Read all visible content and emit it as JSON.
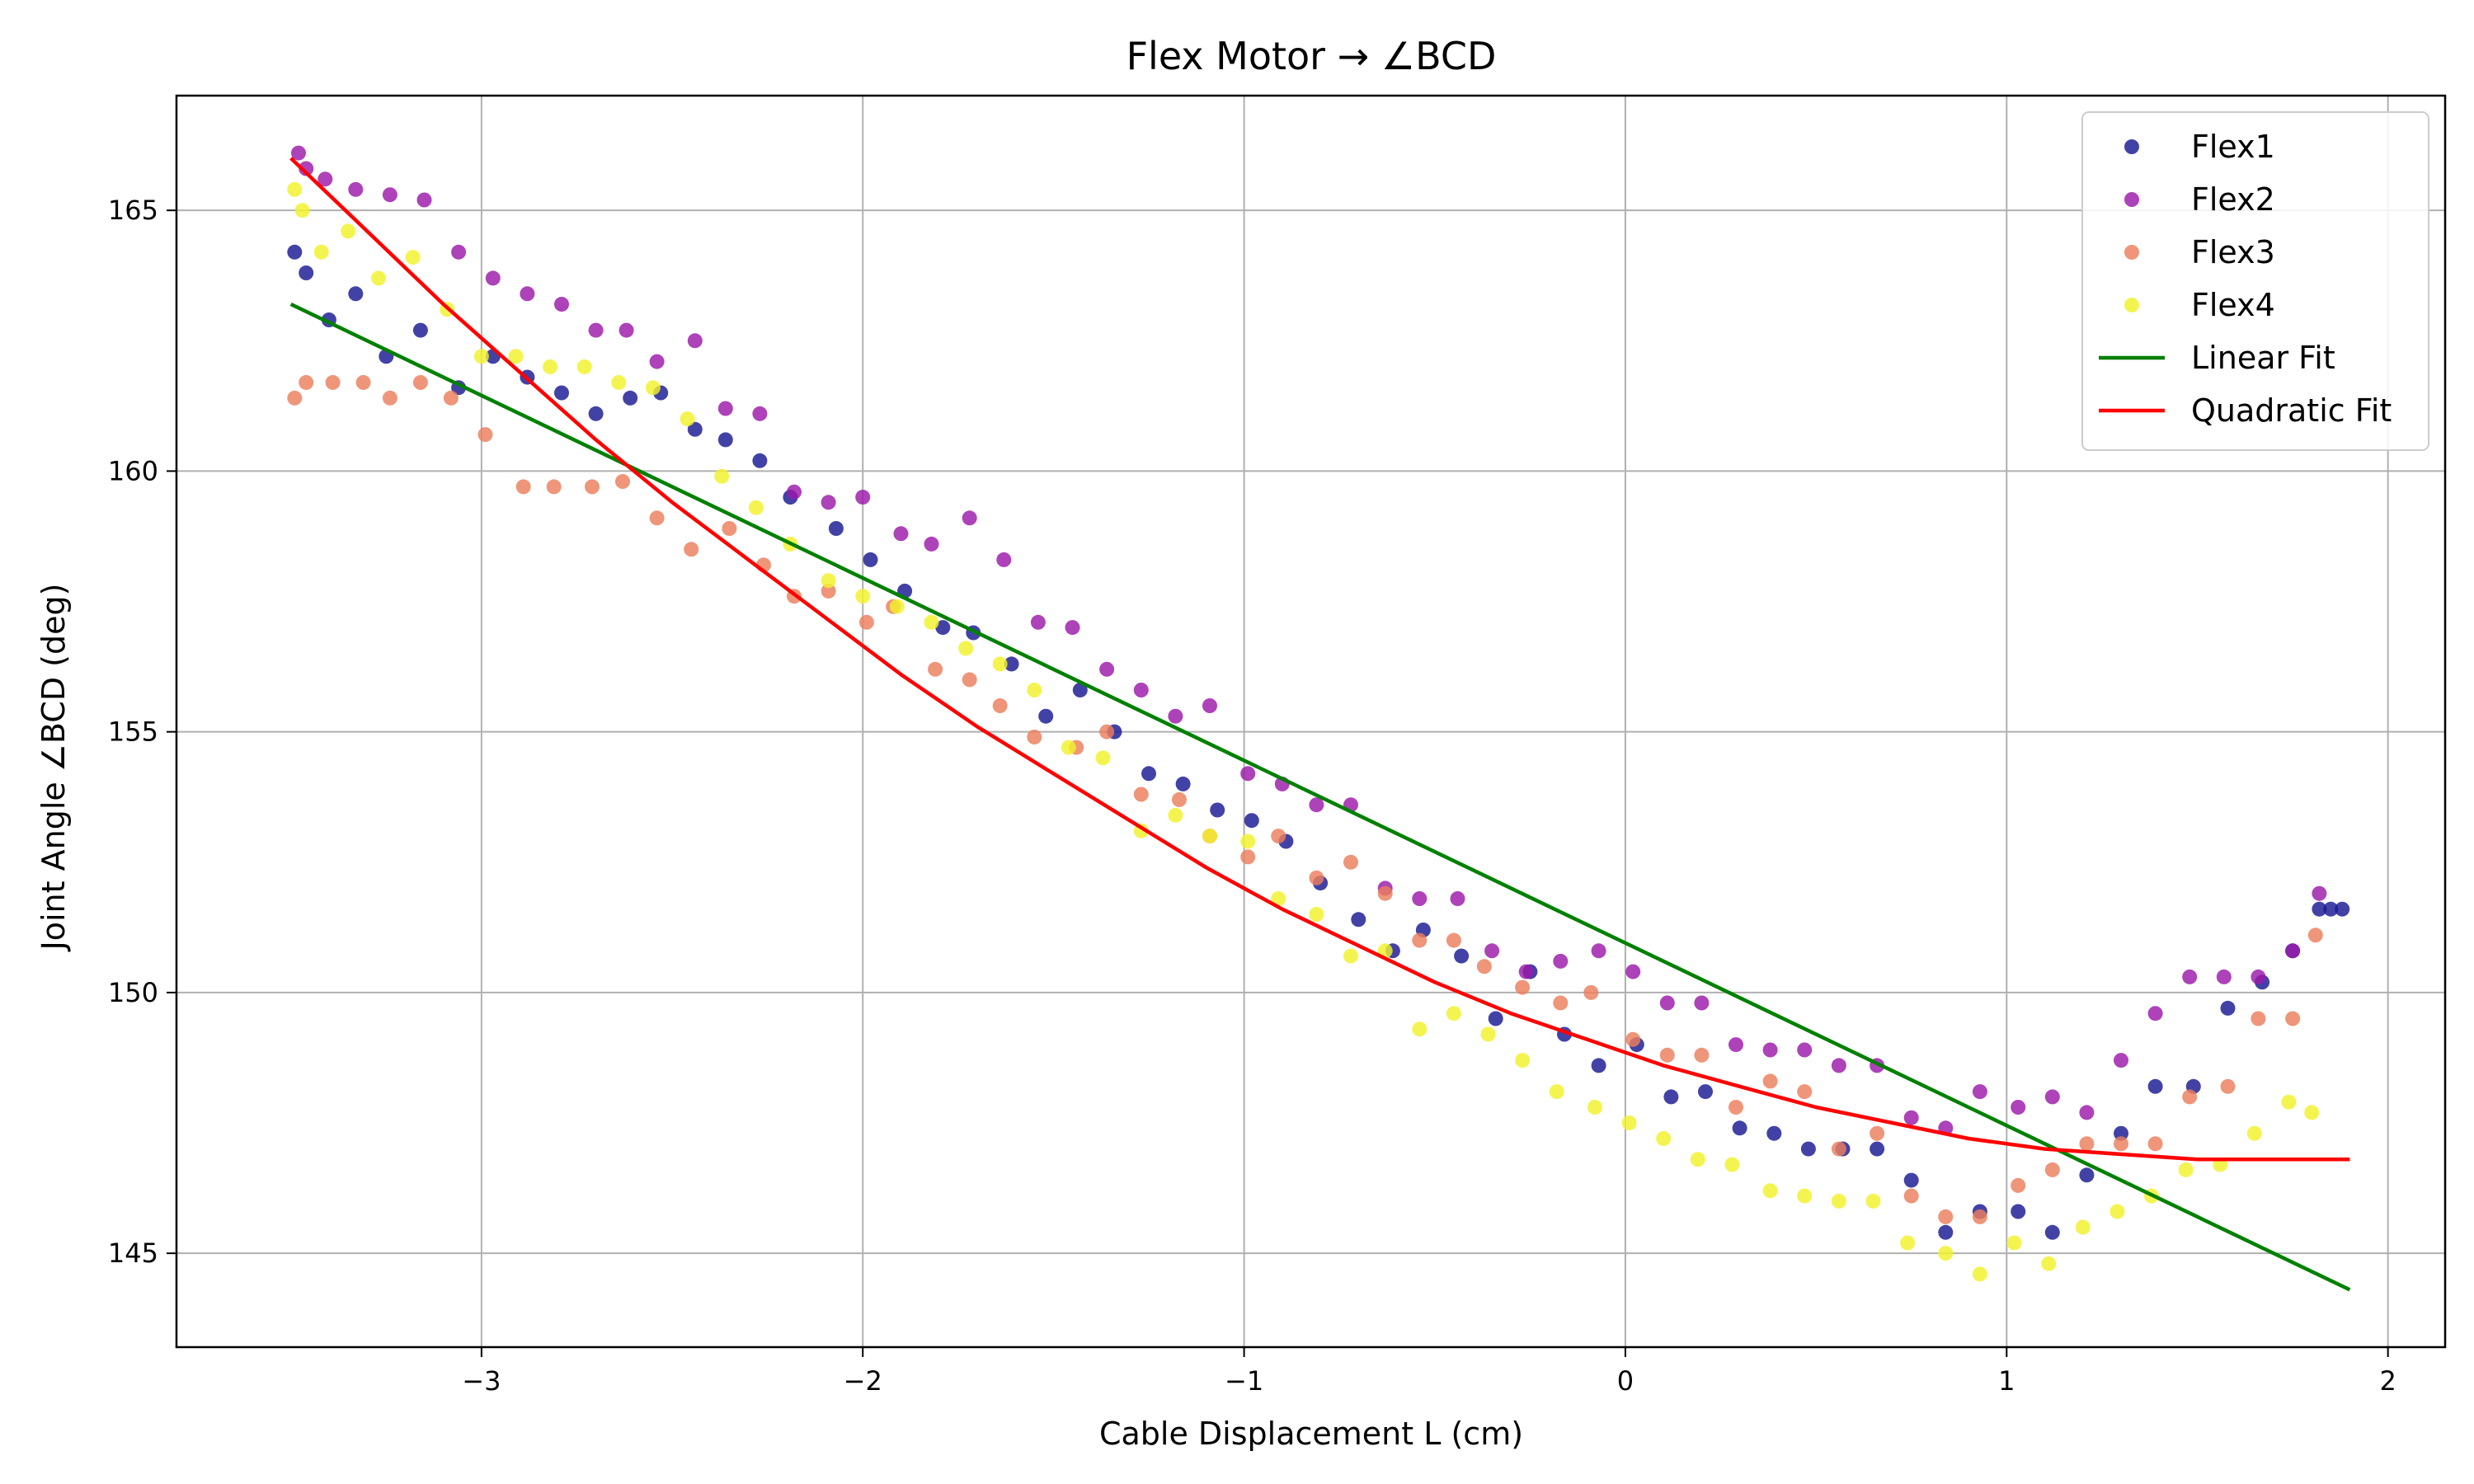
{
  "chart_data": {
    "type": "scatter",
    "title": "Flex Motor → ∠BCD",
    "xlabel": "Cable Displacement L (cm)",
    "ylabel": "Joint Angle ∠BCD (deg)",
    "xlim": [
      -3.8,
      2.15
    ],
    "ylim": [
      143.2,
      167.2
    ],
    "xticks": [
      -3,
      -2,
      -1,
      0,
      1,
      2
    ],
    "xtick_labels": [
      "−3",
      "−2",
      "−1",
      "0",
      "1",
      "2"
    ],
    "yticks": [
      145,
      150,
      155,
      160,
      165
    ],
    "ytick_labels": [
      "145",
      "150",
      "155",
      "160",
      "165"
    ],
    "grid": true,
    "legend_position": "top-right",
    "series": [
      {
        "name": "Flex1",
        "kind": "scatter",
        "color": "#191993",
        "x": [
          -3.49,
          -3.46,
          -3.4,
          -3.33,
          -3.25,
          -3.16,
          -3.06,
          -2.97,
          -2.88,
          -2.79,
          -2.7,
          -2.61,
          -2.53,
          -2.44,
          -2.36,
          -2.27,
          -2.19,
          -2.07,
          -1.98,
          -1.89,
          -1.79,
          -1.71,
          -1.61,
          -1.52,
          -1.43,
          -1.34,
          -1.25,
          -1.16,
          -1.07,
          -0.98,
          -0.89,
          -0.8,
          -0.7,
          -0.61,
          -0.53,
          -0.43,
          -0.34,
          -0.25,
          -0.16,
          -0.07,
          0.03,
          0.12,
          0.21,
          0.3,
          0.39,
          0.48,
          0.57,
          0.66,
          0.75,
          0.84,
          0.93,
          1.03,
          1.12,
          1.21,
          1.3,
          1.39,
          1.49,
          1.58,
          1.67,
          1.75,
          1.82,
          1.85,
          1.88
        ],
        "y": [
          164.2,
          163.8,
          162.9,
          163.4,
          162.2,
          162.7,
          161.6,
          162.2,
          161.8,
          161.5,
          161.1,
          161.4,
          161.5,
          160.8,
          160.6,
          160.2,
          159.5,
          158.9,
          158.3,
          157.7,
          157.0,
          156.9,
          156.3,
          155.3,
          155.8,
          155.0,
          154.2,
          154.0,
          153.5,
          153.3,
          152.9,
          152.1,
          151.4,
          150.8,
          151.2,
          150.7,
          149.5,
          150.4,
          149.2,
          148.6,
          149.0,
          148.0,
          148.1,
          147.4,
          147.3,
          147.0,
          147.0,
          147.0,
          146.4,
          145.4,
          145.8,
          145.8,
          145.4,
          146.5,
          147.3,
          148.2,
          148.2,
          149.7,
          150.2,
          150.8,
          151.6,
          151.6,
          151.6
        ]
      },
      {
        "name": "Flex2",
        "kind": "scatter",
        "color": "#9b18a9",
        "x": [
          -3.48,
          -3.46,
          -3.41,
          -3.33,
          -3.24,
          -3.15,
          -3.06,
          -2.97,
          -2.88,
          -2.79,
          -2.7,
          -2.62,
          -2.54,
          -2.44,
          -2.36,
          -2.27,
          -2.18,
          -2.09,
          -2.0,
          -1.9,
          -1.82,
          -1.72,
          -1.63,
          -1.54,
          -1.45,
          -1.36,
          -1.27,
          -1.18,
          -1.09,
          -0.99,
          -0.9,
          -0.81,
          -0.72,
          -0.63,
          -0.54,
          -0.44,
          -0.35,
          -0.26,
          -0.17,
          -0.07,
          0.02,
          0.11,
          0.2,
          0.29,
          0.38,
          0.47,
          0.56,
          0.66,
          0.75,
          0.84,
          0.93,
          1.03,
          1.12,
          1.21,
          1.3,
          1.39,
          1.48,
          1.57,
          1.66,
          1.75,
          1.82
        ],
        "y": [
          166.1,
          165.8,
          165.6,
          165.4,
          165.3,
          165.2,
          164.2,
          163.7,
          163.4,
          163.2,
          162.7,
          162.7,
          162.1,
          162.5,
          161.2,
          161.1,
          159.6,
          159.4,
          159.5,
          158.8,
          158.6,
          159.1,
          158.3,
          157.1,
          157.0,
          156.2,
          155.8,
          155.3,
          155.5,
          154.2,
          154.0,
          153.6,
          153.6,
          152.0,
          151.8,
          151.8,
          150.8,
          150.4,
          150.6,
          150.8,
          150.4,
          149.8,
          149.8,
          149.0,
          148.9,
          148.9,
          148.6,
          148.6,
          147.6,
          147.4,
          148.1,
          147.8,
          148.0,
          147.7,
          148.7,
          149.6,
          150.3,
          150.3,
          150.3,
          150.8,
          151.9
        ]
      },
      {
        "name": "Flex3",
        "kind": "scatter",
        "color": "#ec7e5b",
        "x": [
          -3.49,
          -3.46,
          -3.39,
          -3.31,
          -3.24,
          -3.16,
          -3.08,
          -2.99,
          -2.89,
          -2.81,
          -2.71,
          -2.63,
          -2.54,
          -2.45,
          -2.35,
          -2.26,
          -2.18,
          -2.09,
          -1.99,
          -1.92,
          -1.81,
          -1.72,
          -1.64,
          -1.55,
          -1.44,
          -1.36,
          -1.27,
          -1.17,
          -1.09,
          -0.99,
          -0.91,
          -0.81,
          -0.72,
          -0.63,
          -0.54,
          -0.45,
          -0.37,
          -0.27,
          -0.17,
          -0.09,
          0.02,
          0.11,
          0.2,
          0.29,
          0.38,
          0.47,
          0.56,
          0.66,
          0.75,
          0.84,
          0.93,
          1.03,
          1.12,
          1.21,
          1.3,
          1.39,
          1.48,
          1.58,
          1.66,
          1.75,
          1.81
        ],
        "y": [
          161.4,
          161.7,
          161.7,
          161.7,
          161.4,
          161.7,
          161.4,
          160.7,
          159.7,
          159.7,
          159.7,
          159.8,
          159.1,
          158.5,
          158.9,
          158.2,
          157.6,
          157.7,
          157.1,
          157.4,
          156.2,
          156.0,
          155.5,
          154.9,
          154.7,
          155.0,
          153.8,
          153.7,
          153.0,
          152.6,
          153.0,
          152.2,
          152.5,
          151.9,
          151.0,
          151.0,
          150.5,
          150.1,
          149.8,
          150.0,
          149.1,
          148.8,
          148.8,
          147.8,
          148.3,
          148.1,
          147.0,
          147.3,
          146.1,
          145.7,
          145.7,
          146.3,
          146.6,
          147.1,
          147.1,
          147.1,
          148.0,
          148.2,
          149.5,
          149.5,
          151.1
        ]
      },
      {
        "name": "Flex4",
        "kind": "scatter",
        "color": "#f2f22a",
        "x": [
          -3.49,
          -3.47,
          -3.42,
          -3.35,
          -3.27,
          -3.18,
          -3.09,
          -3.0,
          -2.91,
          -2.82,
          -2.73,
          -2.64,
          -2.55,
          -2.46,
          -2.37,
          -2.28,
          -2.19,
          -2.09,
          -2.0,
          -1.91,
          -1.82,
          -1.73,
          -1.64,
          -1.55,
          -1.46,
          -1.37,
          -1.27,
          -1.18,
          -1.09,
          -0.99,
          -0.91,
          -0.81,
          -0.72,
          -0.63,
          -0.54,
          -0.45,
          -0.36,
          -0.27,
          -0.18,
          -0.08,
          0.01,
          0.1,
          0.19,
          0.28,
          0.38,
          0.47,
          0.56,
          0.65,
          0.74,
          0.84,
          0.93,
          1.02,
          1.11,
          1.2,
          1.29,
          1.38,
          1.47,
          1.56,
          1.65,
          1.74,
          1.8
        ],
        "y": [
          165.4,
          165.0,
          164.2,
          164.6,
          163.7,
          164.1,
          163.1,
          162.2,
          162.2,
          162.0,
          162.0,
          161.7,
          161.6,
          161.0,
          159.9,
          159.3,
          158.6,
          157.9,
          157.6,
          157.4,
          157.1,
          156.6,
          156.3,
          155.8,
          154.7,
          154.5,
          153.1,
          153.4,
          153.0,
          152.9,
          151.8,
          151.5,
          150.7,
          150.8,
          149.3,
          149.6,
          149.2,
          148.7,
          148.1,
          147.8,
          147.5,
          147.2,
          146.8,
          146.7,
          146.2,
          146.1,
          146.0,
          146.0,
          145.2,
          145.0,
          144.6,
          145.2,
          144.8,
          145.5,
          145.8,
          146.1,
          146.6,
          146.7,
          147.3,
          147.9,
          147.7
        ]
      },
      {
        "name": "Linear Fit",
        "kind": "line",
        "color": "#008000",
        "x": [
          -3.5,
          1.9
        ],
        "y": [
          163.2,
          144.3
        ]
      },
      {
        "name": "Quadratic Fit",
        "kind": "line",
        "color": "#ff0000",
        "x": [
          -3.5,
          -3.3,
          -3.1,
          -2.9,
          -2.7,
          -2.5,
          -2.3,
          -2.1,
          -1.9,
          -1.7,
          -1.5,
          -1.3,
          -1.1,
          -0.9,
          -0.7,
          -0.5,
          -0.3,
          -0.1,
          0.1,
          0.3,
          0.5,
          0.7,
          0.9,
          1.1,
          1.3,
          1.5,
          1.7,
          1.9
        ],
        "y": [
          166.0,
          164.6,
          163.2,
          161.9,
          160.6,
          159.4,
          158.3,
          157.2,
          156.1,
          155.1,
          154.2,
          153.3,
          152.4,
          151.6,
          150.9,
          150.2,
          149.6,
          149.1,
          148.6,
          148.2,
          147.8,
          147.5,
          147.2,
          147.0,
          146.9,
          146.8,
          146.8,
          146.8
        ]
      }
    ]
  }
}
